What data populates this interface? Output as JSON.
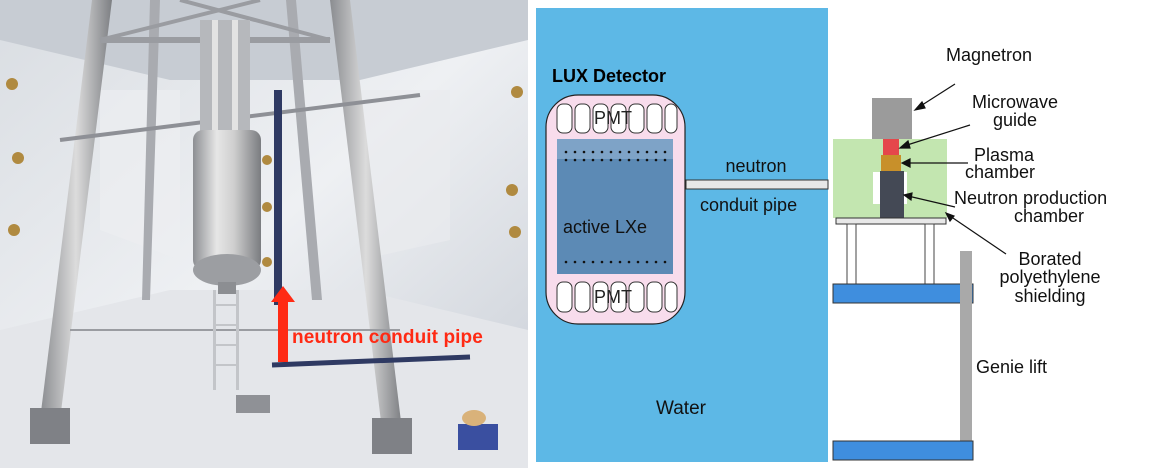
{
  "photo": {
    "arrow_label": "neutron conduit pipe",
    "arrow_color": "#ff2a14"
  },
  "detector_panel": {
    "title": "LUX Detector",
    "pmt_top": "PMT",
    "pmt_bottom": "PMT",
    "active_region": "active LXe",
    "pipe_label_top": "neutron",
    "pipe_label_bottom": "conduit pipe",
    "water_label": "Water",
    "water_color": "#5db8e6",
    "vessel_color": "#f8dcec",
    "lxe_color": "#5c8ab5"
  },
  "generator_panel": {
    "magnetron": "Magnetron",
    "microwave_line1": "Microwave",
    "microwave_line2": "guide",
    "plasma_line1": "Plasma",
    "plasma_line2": "chamber",
    "neutron_line1": "Neutron production",
    "neutron_line2": "chamber",
    "borated_line1": "Borated",
    "borated_line2": "polyethylene",
    "borated_line3": "shielding",
    "genie_lift": "Genie lift",
    "shield_color": "#c3e6b0",
    "platform_color": "#3f8ede"
  }
}
